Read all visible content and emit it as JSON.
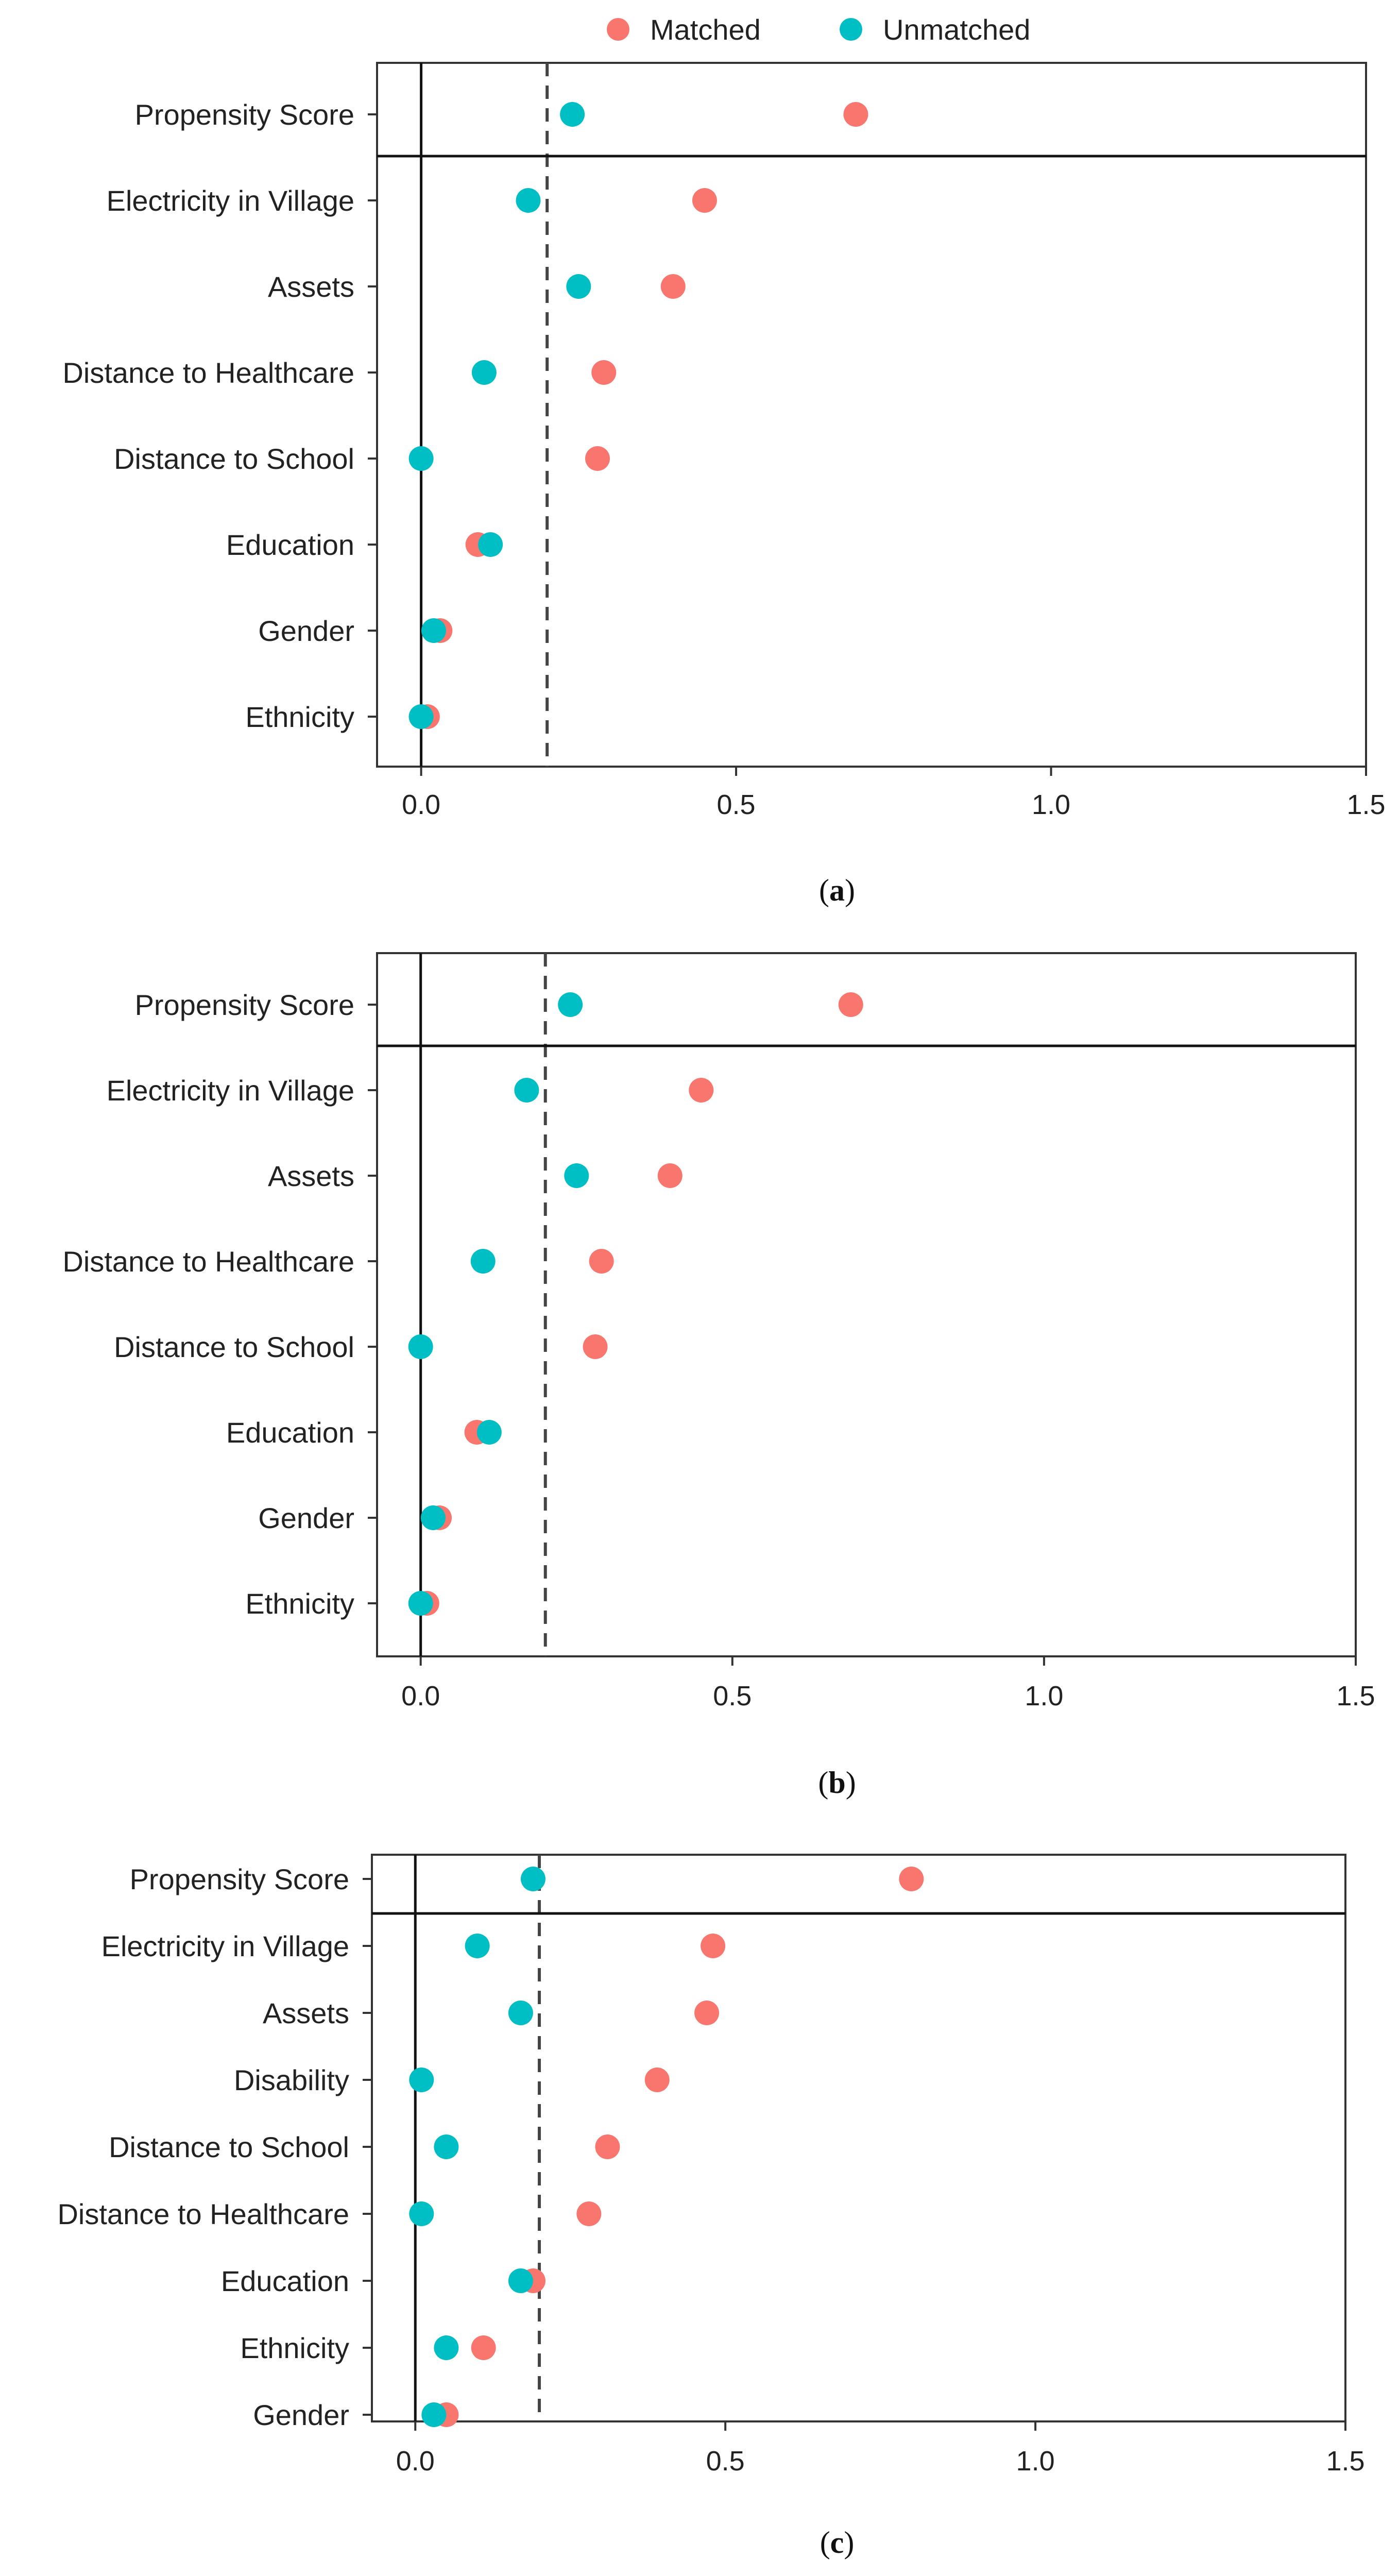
{
  "legend": {
    "items": [
      {
        "label": "Matched",
        "color": "#F8766D"
      },
      {
        "label": "Unmatched",
        "color": "#00BFC4"
      }
    ]
  },
  "colors": {
    "matched": "#F8766D",
    "unmatched": "#00BFC4",
    "frame": "#333333",
    "text": "#222222"
  },
  "chart_data": [
    {
      "type": "scatter",
      "panel_label": "a",
      "xlim": [
        -0.07,
        1.5
      ],
      "xticks": [
        0.0,
        0.5,
        1.0,
        1.5
      ],
      "xtick_labels": [
        "0.0",
        "0.5",
        "1.0",
        "1.5"
      ],
      "threshold": 0.2,
      "separator_after_first_row": true,
      "categories": [
        "Propensity Score",
        "Electricity in Village",
        "Assets",
        "Distance to Healthcare",
        "Distance to School",
        "Education",
        "Gender",
        "Ethnicity"
      ],
      "series": [
        {
          "name": "Matched",
          "values": [
            0.69,
            0.45,
            0.4,
            0.29,
            0.28,
            0.09,
            0.03,
            0.01
          ]
        },
        {
          "name": "Unmatched",
          "values": [
            0.24,
            0.17,
            0.25,
            0.1,
            0.0,
            0.11,
            0.02,
            0.0
          ]
        }
      ]
    },
    {
      "type": "scatter",
      "panel_label": "b",
      "xlim": [
        -0.07,
        1.5
      ],
      "xticks": [
        0.0,
        0.5,
        1.0,
        1.5
      ],
      "xtick_labels": [
        "0.0",
        "0.5",
        "1.0",
        "1.5"
      ],
      "threshold": 0.2,
      "separator_after_first_row": true,
      "categories": [
        "Propensity Score",
        "Electricity in Village",
        "Assets",
        "Distance to Healthcare",
        "Distance to School",
        "Education",
        "Gender",
        "Ethnicity"
      ],
      "series": [
        {
          "name": "Matched",
          "values": [
            0.69,
            0.45,
            0.4,
            0.29,
            0.28,
            0.09,
            0.03,
            0.01
          ]
        },
        {
          "name": "Unmatched",
          "values": [
            0.24,
            0.17,
            0.25,
            0.1,
            0.0,
            0.11,
            0.02,
            0.0
          ]
        }
      ]
    },
    {
      "type": "scatter",
      "panel_label": "c",
      "xlim": [
        -0.07,
        1.5
      ],
      "xticks": [
        0.0,
        0.5,
        1.0,
        1.5
      ],
      "xtick_labels": [
        "0.0",
        "0.5",
        "1.0",
        "1.5"
      ],
      "threshold": 0.2,
      "separator_after_first_row": true,
      "categories": [
        "Propensity Score",
        "Electricity in Village",
        "Assets",
        "Disability",
        "Distance to School",
        "Distance to Healthcare",
        "Education",
        "Ethnicity",
        "Gender"
      ],
      "series": [
        {
          "name": "Matched",
          "values": [
            0.8,
            0.48,
            0.47,
            0.39,
            0.31,
            0.28,
            0.19,
            0.11,
            0.05
          ]
        },
        {
          "name": "Unmatched",
          "values": [
            0.19,
            0.1,
            0.17,
            0.01,
            0.05,
            0.01,
            0.17,
            0.05,
            0.03
          ]
        }
      ]
    }
  ]
}
